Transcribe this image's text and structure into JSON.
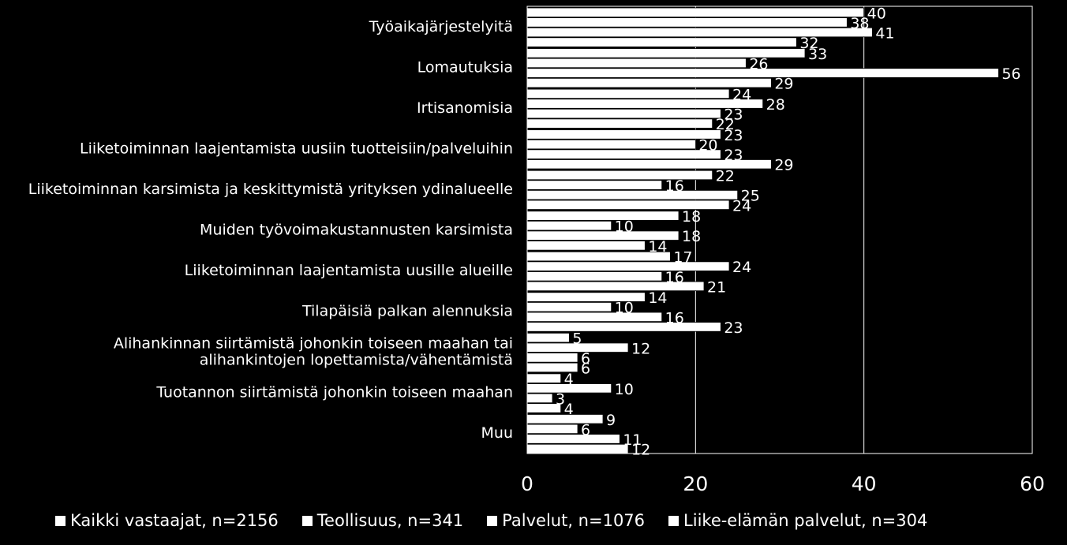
{
  "chart_data": {
    "type": "bar",
    "orientation": "horizontal",
    "categories": [
      "Työaikajärjestelyitä",
      "Lomautuksia",
      "Irtisanomisia",
      "Liiketoiminnan laajentamista uusiin tuotteisiin/palveluihin",
      "Liiketoiminnan karsimista ja keskittymistä yrityksen ydinalueelle",
      "Muiden työvoimakustannusten karsimista",
      "Liiketoiminnan laajentamista uusille alueille",
      "Tilapäisiä palkan alennuksia",
      "Alihankinnan siirtämistä johonkin toiseen maahan tai alihankintojen lopettamista/vähentämistä",
      "Tuotannon siirtämistä johonkin toiseen maahan",
      "Muu"
    ],
    "category_lines": [
      [
        "Työaikajärjestelyitä"
      ],
      [
        "Lomautuksia"
      ],
      [
        "Irtisanomisia"
      ],
      [
        "Liiketoiminnan laajentamista uusiin tuotteisiin/palveluihin"
      ],
      [
        "Liiketoiminnan karsimista ja keskittymistä yrityksen ydinalueelle"
      ],
      [
        "Muiden työvoimakustannusten karsimista"
      ],
      [
        "Liiketoiminnan laajentamista uusille alueille"
      ],
      [
        "Tilapäisiä palkan alennuksia"
      ],
      [
        "Alihankinnan siirtämistä johonkin toiseen maahan tai",
        "alihankintojen lopettamista/vähentämistä"
      ],
      [
        "Tuotannon siirtämistä johonkin toiseen maahan"
      ],
      [
        "Muu"
      ]
    ],
    "series": [
      {
        "name": "Kaikki vastaajat, n=2156",
        "values": [
          40,
          33,
          24,
          23,
          22,
          18,
          17,
          14,
          5,
          4,
          9
        ]
      },
      {
        "name": "Teollisuus, n=341",
        "values": [
          38,
          26,
          28,
          20,
          16,
          10,
          24,
          10,
          12,
          10,
          6
        ]
      },
      {
        "name": "Palvelut, n=1076",
        "values": [
          41,
          56,
          23,
          23,
          25,
          18,
          16,
          16,
          6,
          3,
          11
        ]
      },
      {
        "name": "Liike-elämän palvelut, n=304",
        "values": [
          32,
          29,
          22,
          29,
          24,
          14,
          21,
          23,
          6,
          4,
          12
        ]
      }
    ],
    "xlim": [
      0,
      60
    ],
    "xticks": [
      "0",
      "20",
      "40",
      "60"
    ],
    "grid": true,
    "legend_position": "bottom",
    "colors": {
      "background": "#000000",
      "bar": "#ffffff",
      "text": "#ffffff"
    }
  }
}
